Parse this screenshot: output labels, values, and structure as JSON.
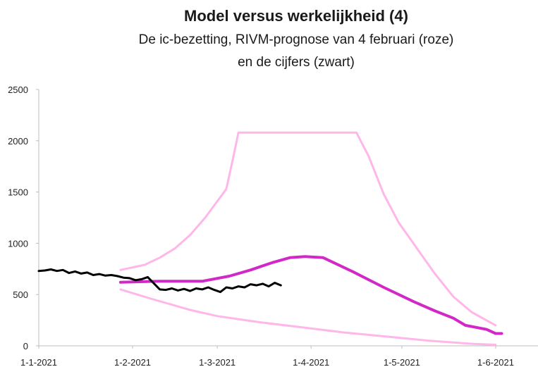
{
  "chart_data": {
    "type": "line",
    "title": "Model versus werkelijkheid (4)",
    "subtitle_lines": [
      "De ic-bezetting, RIVM-prognose van 4 februari (roze)",
      "en de cijfers (zwart)"
    ],
    "xlabel": "",
    "ylabel": "",
    "ylim": [
      0,
      2500
    ],
    "yticks": [
      0,
      500,
      1000,
      1500,
      2000,
      2500
    ],
    "xticks": [
      "1-1-2021",
      "1-2-2021",
      "1-3-2021",
      "1-4-2021",
      "1-5-2021",
      "1-6-2021"
    ],
    "xlim": [
      "2021-01-01",
      "2021-06-15"
    ],
    "grid": false,
    "legend": "none",
    "series": [
      {
        "color": "#ffb6e8",
        "stroke_width": 3,
        "points": [
          [
            "2021-01-28",
            740
          ],
          [
            "2021-02-05",
            790
          ],
          [
            "2021-02-10",
            860
          ],
          [
            "2021-02-15",
            950
          ],
          [
            "2021-02-20",
            1080
          ],
          [
            "2021-02-25",
            1250
          ],
          [
            "2021-03-02",
            1450
          ],
          [
            "2021-03-04",
            1530
          ],
          [
            "2021-03-06",
            1800
          ],
          [
            "2021-03-08",
            2080
          ],
          [
            "2021-04-02",
            2080
          ],
          [
            "2021-04-16",
            2080
          ],
          [
            "2021-04-20",
            1850
          ],
          [
            "2021-04-25",
            1480
          ],
          [
            "2021-04-30",
            1200
          ],
          [
            "2021-05-06",
            950
          ],
          [
            "2021-05-12",
            700
          ],
          [
            "2021-05-18",
            480
          ],
          [
            "2021-05-24",
            330
          ],
          [
            "2021-06-01",
            200
          ]
        ]
      },
      {
        "color": "#d228c8",
        "stroke_width": 4,
        "points": [
          [
            "2021-01-28",
            620
          ],
          [
            "2021-02-10",
            630
          ],
          [
            "2021-02-24",
            630
          ],
          [
            "2021-03-05",
            680
          ],
          [
            "2021-03-12",
            740
          ],
          [
            "2021-03-19",
            810
          ],
          [
            "2021-03-25",
            860
          ],
          [
            "2021-03-30",
            870
          ],
          [
            "2021-04-05",
            860
          ],
          [
            "2021-04-15",
            720
          ],
          [
            "2021-04-25",
            570
          ],
          [
            "2021-05-05",
            430
          ],
          [
            "2021-05-12",
            340
          ],
          [
            "2021-05-18",
            270
          ],
          [
            "2021-05-22",
            200
          ],
          [
            "2021-05-29",
            160
          ],
          [
            "2021-06-01",
            120
          ],
          [
            "2021-06-03",
            120
          ]
        ]
      },
      {
        "color": "#ffb6e8",
        "stroke_width": 3,
        "points": [
          [
            "2021-01-28",
            550
          ],
          [
            "2021-02-07",
            460
          ],
          [
            "2021-02-20",
            350
          ],
          [
            "2021-03-01",
            290
          ],
          [
            "2021-03-15",
            230
          ],
          [
            "2021-03-29",
            180
          ],
          [
            "2021-04-12",
            130
          ],
          [
            "2021-04-26",
            90
          ],
          [
            "2021-05-10",
            50
          ],
          [
            "2021-05-24",
            20
          ],
          [
            "2021-06-01",
            10
          ]
        ]
      },
      {
        "color": "#000000",
        "stroke_width": 3,
        "points": [
          [
            "2021-01-01",
            730
          ],
          [
            "2021-01-03",
            735
          ],
          [
            "2021-01-05",
            745
          ],
          [
            "2021-01-07",
            730
          ],
          [
            "2021-01-09",
            740
          ],
          [
            "2021-01-11",
            710
          ],
          [
            "2021-01-13",
            725
          ],
          [
            "2021-01-15",
            705
          ],
          [
            "2021-01-17",
            715
          ],
          [
            "2021-01-19",
            690
          ],
          [
            "2021-01-21",
            700
          ],
          [
            "2021-01-23",
            685
          ],
          [
            "2021-01-25",
            690
          ],
          [
            "2021-01-27",
            680
          ],
          [
            "2021-01-29",
            665
          ],
          [
            "2021-01-31",
            660
          ],
          [
            "2021-02-02",
            640
          ],
          [
            "2021-02-04",
            650
          ],
          [
            "2021-02-06",
            670
          ],
          [
            "2021-02-08",
            610
          ],
          [
            "2021-02-10",
            550
          ],
          [
            "2021-02-12",
            545
          ],
          [
            "2021-02-14",
            560
          ],
          [
            "2021-02-16",
            540
          ],
          [
            "2021-02-18",
            555
          ],
          [
            "2021-02-20",
            535
          ],
          [
            "2021-02-22",
            560
          ],
          [
            "2021-02-24",
            550
          ],
          [
            "2021-02-26",
            570
          ],
          [
            "2021-02-28",
            545
          ],
          [
            "2021-03-02",
            525
          ],
          [
            "2021-03-04",
            570
          ],
          [
            "2021-03-06",
            560
          ],
          [
            "2021-03-08",
            580
          ],
          [
            "2021-03-10",
            570
          ],
          [
            "2021-03-12",
            600
          ],
          [
            "2021-03-14",
            590
          ],
          [
            "2021-03-16",
            605
          ],
          [
            "2021-03-18",
            580
          ],
          [
            "2021-03-20",
            615
          ],
          [
            "2021-03-22",
            590
          ]
        ]
      }
    ]
  }
}
